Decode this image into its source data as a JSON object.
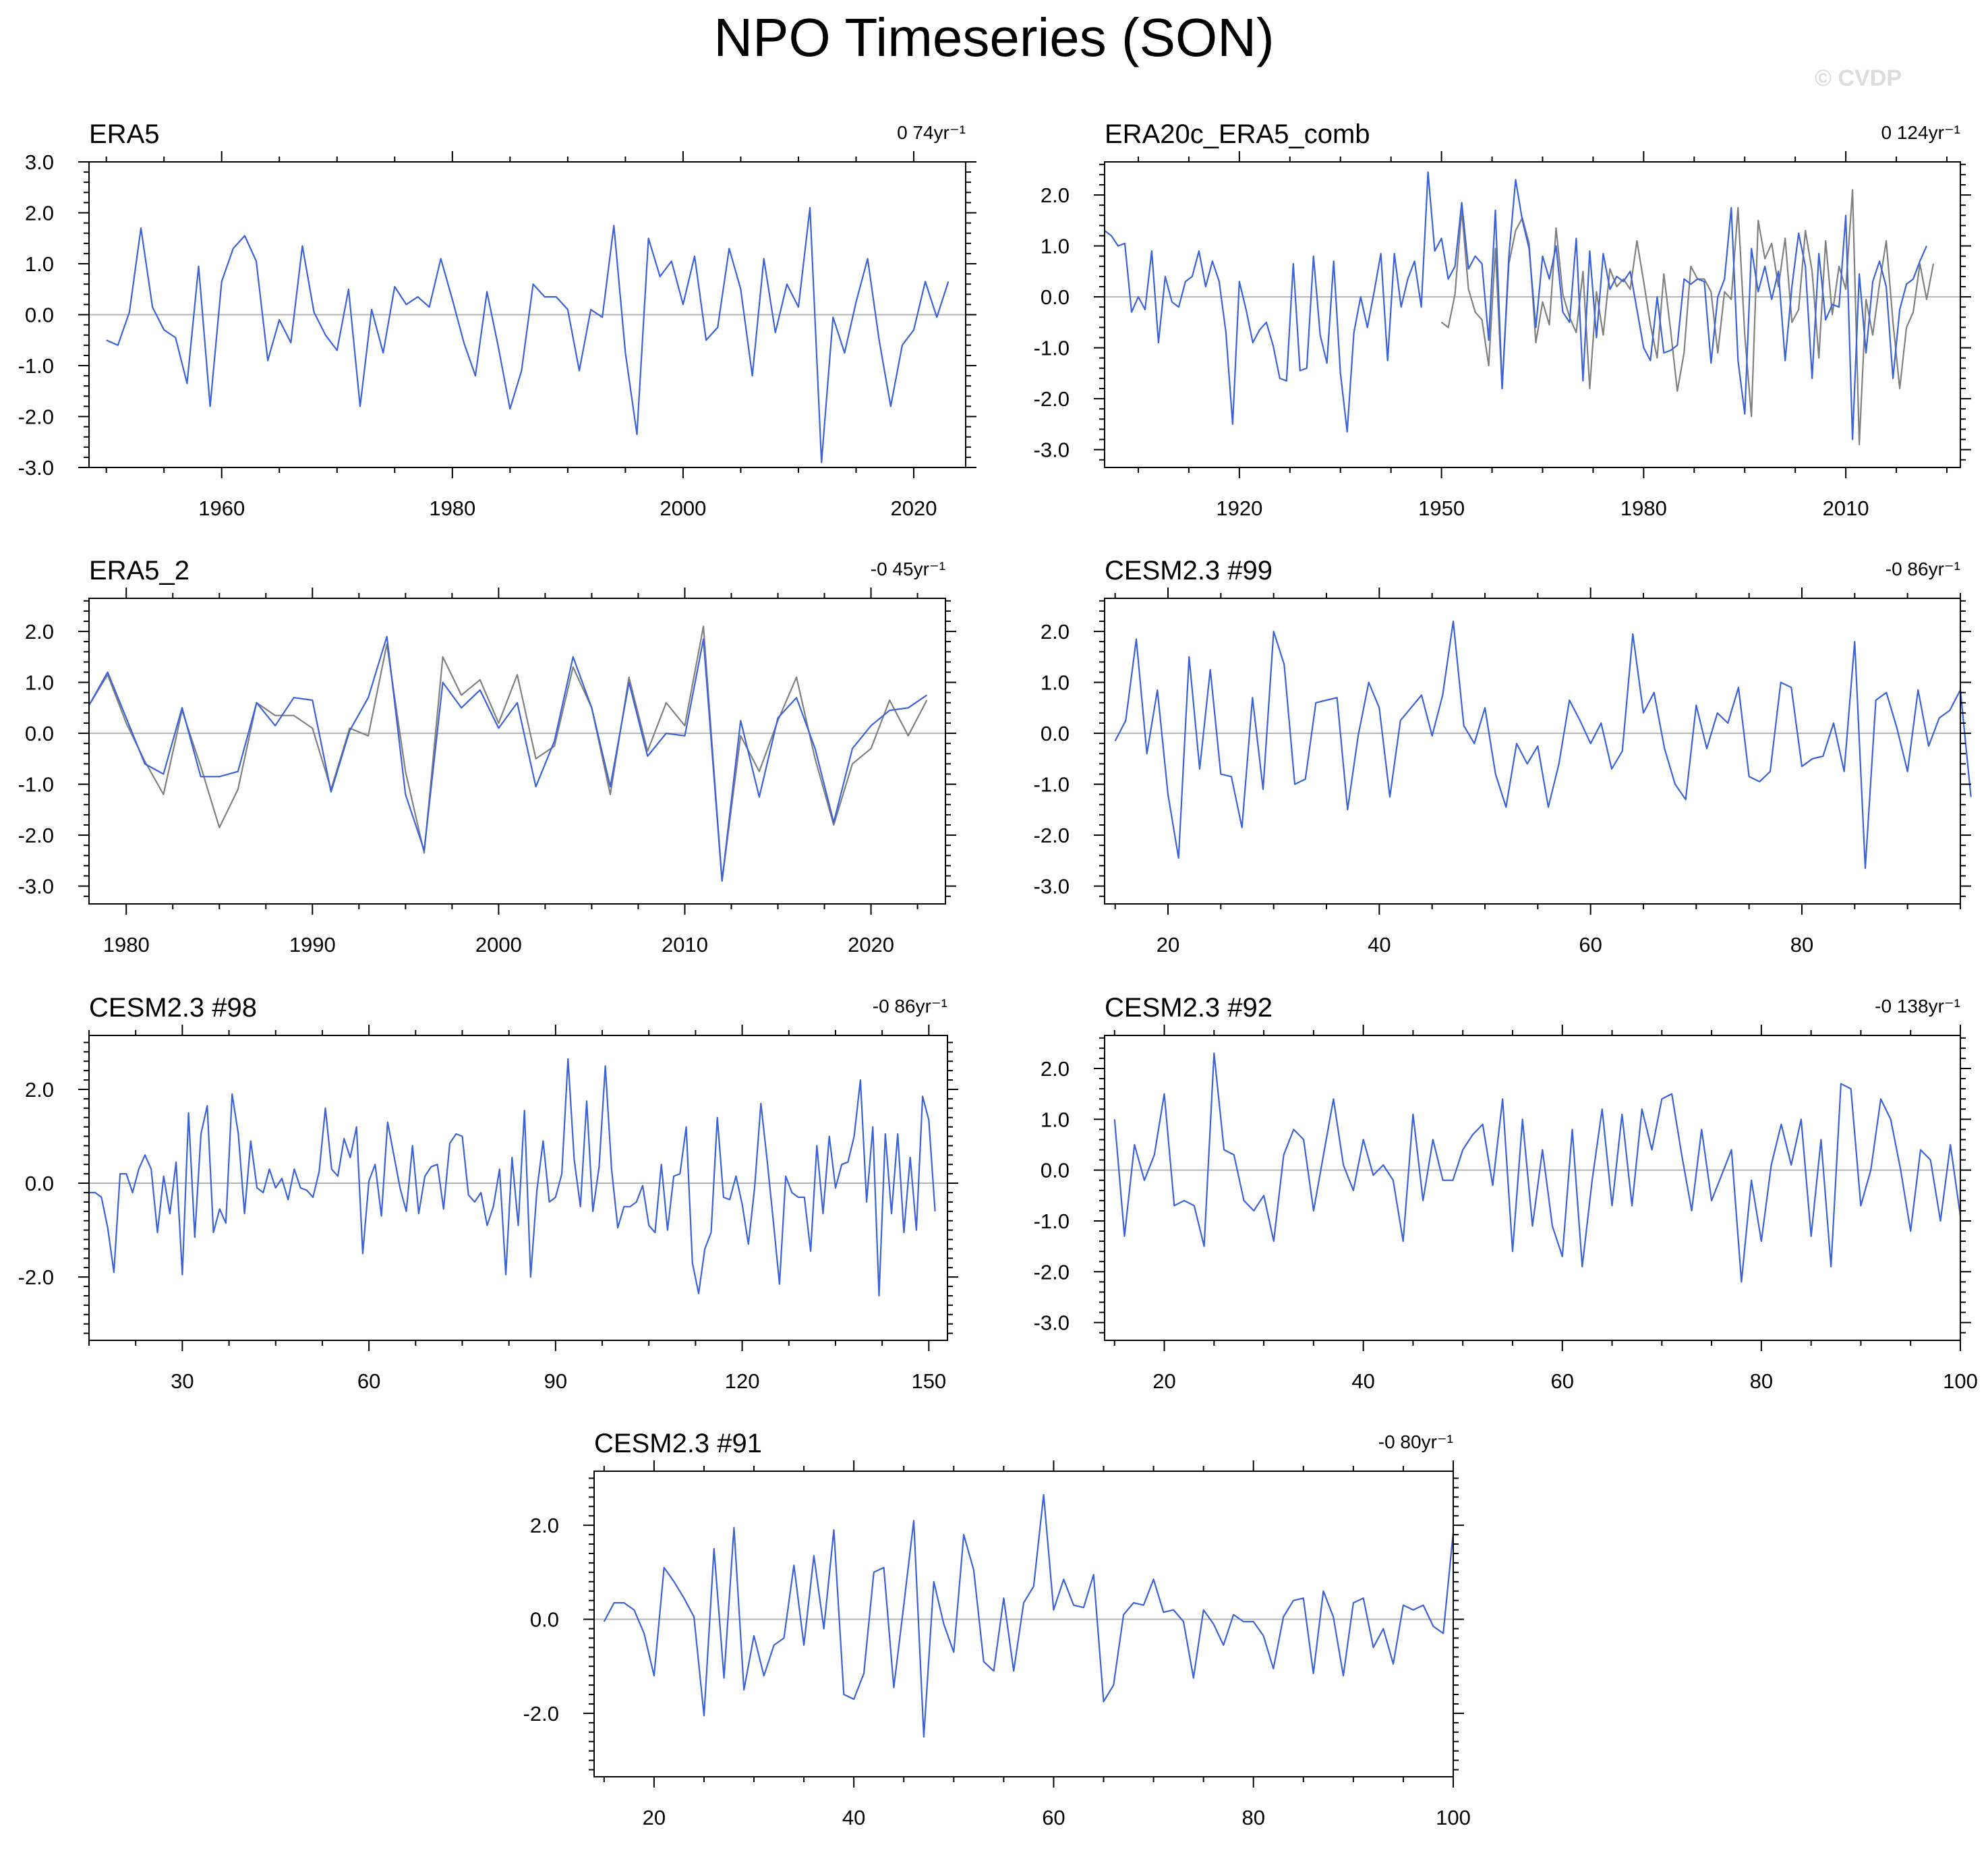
{
  "figure": {
    "title": "NPO Timeseries (SON)",
    "watermark": "© CVDP"
  },
  "colors": {
    "model_line": "#3b62d6",
    "obs_line": "#808080",
    "zero_line": "#b4b4b4",
    "frame": "#000000"
  },
  "chart_data": [
    {
      "type": "line",
      "title": "ERA5",
      "trend_label": "0 74yr⁻¹",
      "xlabel": "",
      "ylabel": "",
      "xlim": [
        1948.5,
        2024.5
      ],
      "ylim": [
        -3.0,
        3.0
      ],
      "xticks": [
        1960,
        1980,
        2000,
        2020
      ],
      "yticks": [
        -3.0,
        -2.0,
        -1.0,
        0.0,
        1.0,
        2.0,
        3.0
      ],
      "series": [
        {
          "name": "ERA5",
          "color": "#3b62d6",
          "x_start": 1950,
          "x_step": 1,
          "values": [
            -0.5,
            -0.6,
            0.05,
            1.7,
            0.15,
            -0.3,
            -0.45,
            -1.35,
            0.95,
            -1.8,
            0.65,
            1.3,
            1.55,
            1.05,
            -0.9,
            -0.1,
            -0.55,
            1.35,
            0.05,
            -0.4,
            -0.7,
            0.5,
            -1.8,
            0.1,
            -0.75,
            0.55,
            0.2,
            0.35,
            0.15,
            1.1,
            0.3,
            -0.55,
            -1.2,
            0.45,
            -0.65,
            -1.85,
            -1.1,
            0.6,
            0.35,
            0.35,
            0.1,
            -1.1,
            0.1,
            -0.05,
            1.75,
            -0.75,
            -2.35,
            1.5,
            0.75,
            1.05,
            0.2,
            1.15,
            -0.5,
            -0.25,
            1.3,
            0.5,
            -1.2,
            1.1,
            -0.35,
            0.6,
            0.15,
            2.1,
            -2.9,
            -0.05,
            -0.75,
            0.25,
            1.1,
            -0.5,
            -1.8,
            -0.6,
            -0.3,
            0.65,
            -0.05,
            0.65
          ]
        }
      ]
    },
    {
      "type": "line",
      "title": "ERA20c_ERA5_comb",
      "trend_label": "0 124yr⁻¹",
      "xlabel": "",
      "ylabel": "",
      "xlim": [
        1900,
        2027
      ],
      "ylim": [
        -3.35,
        2.65
      ],
      "xticks": [
        1920,
        1950,
        1980,
        2010
      ],
      "yticks": [
        -3.0,
        -2.0,
        -1.0,
        0.0,
        1.0,
        2.0
      ],
      "series": [
        {
          "name": "ERA20c_ERA5_comb",
          "color": "#3b62d6",
          "x_start": 1900,
          "x_step": 1,
          "values": [
            1.3,
            1.2,
            1.0,
            1.05,
            -0.3,
            0.0,
            -0.25,
            0.9,
            -0.9,
            0.4,
            -0.1,
            -0.2,
            0.3,
            0.4,
            0.9,
            0.2,
            0.7,
            0.3,
            -0.7,
            -2.5,
            0.3,
            -0.25,
            -0.9,
            -0.65,
            -0.5,
            -0.95,
            -1.6,
            -1.65,
            0.65,
            -1.45,
            -1.4,
            0.8,
            -0.75,
            -1.3,
            0.7,
            -1.5,
            -2.65,
            -0.7,
            0.0,
            -0.6,
            0.1,
            0.85,
            -1.25,
            0.85,
            -0.2,
            0.35,
            0.7,
            -0.2,
            2.45,
            0.9,
            1.15,
            0.35,
            0.6,
            1.85,
            0.55,
            0.8,
            0.65,
            -0.85,
            1.7,
            -1.8,
            0.8,
            2.3,
            1.5,
            0.95,
            -0.6,
            0.8,
            0.35,
            1.0,
            -0.3,
            -0.5,
            1.15,
            -1.65,
            0.9,
            -0.8,
            0.85,
            0.15,
            0.4,
            0.3,
            0.5,
            -0.25,
            -1.0,
            -1.25,
            0.0,
            -1.1,
            -1.05,
            -0.95,
            0.35,
            0.25,
            0.35,
            0.3,
            -1.3,
            0.0,
            0.35,
            1.75,
            -1.25,
            -2.3,
            0.95,
            0.1,
            0.6,
            -0.05,
            0.5,
            -1.25,
            0.2,
            1.25,
            0.6,
            -1.6,
            0.85,
            -0.45,
            -0.15,
            -0.2,
            1.6,
            -2.8,
            0.45,
            -1.1,
            0.3,
            0.7,
            0.2,
            -1.6,
            -0.25,
            0.25,
            0.35,
            0.7,
            1.0
          ]
        },
        {
          "name": "ERA20c",
          "color": "#808080",
          "x_start": 1950,
          "x_step": 1,
          "values": [
            -0.5,
            -0.6,
            0.05,
            1.7,
            0.15,
            -0.3,
            -0.45,
            -1.35,
            0.95,
            -1.8,
            0.65,
            1.3,
            1.55,
            1.05,
            -0.9,
            -0.1,
            -0.55,
            1.35,
            0.05,
            -0.4,
            -0.7,
            0.5,
            -1.8,
            0.1,
            -0.75,
            0.55,
            0.2,
            0.35,
            0.15,
            1.1,
            0.3,
            -0.55,
            -1.2,
            0.45,
            -0.65,
            -1.85,
            -1.1,
            0.6,
            0.35,
            0.35,
            0.1,
            -1.1,
            0.1,
            -0.05,
            1.75,
            -0.75,
            -2.35,
            1.5,
            0.75,
            1.05,
            0.2,
            1.15,
            -0.5,
            -0.25,
            1.3,
            0.5,
            -1.2,
            1.1,
            -0.35,
            0.6,
            0.15,
            2.1,
            -2.9,
            -0.05,
            -0.75,
            0.25,
            1.1,
            -0.5,
            -1.8,
            -0.6,
            -0.3,
            0.65,
            -0.05,
            0.65
          ]
        }
      ]
    },
    {
      "type": "line",
      "title": "ERA5_2",
      "trend_label": "-0 45yr⁻¹",
      "xlabel": "",
      "ylabel": "",
      "xlim": [
        1978,
        2024
      ],
      "ylim": [
        -3.35,
        2.65
      ],
      "xticks": [
        1980,
        1990,
        2000,
        2010,
        2020
      ],
      "yticks": [
        -3.0,
        -2.0,
        -1.0,
        0.0,
        1.0,
        2.0
      ],
      "series": [
        {
          "name": "ERA5_2",
          "color": "#3b62d6",
          "x_start": 1978,
          "x_step": 1,
          "values": [
            0.55,
            1.2,
            0.3,
            -0.6,
            -0.8,
            0.5,
            -0.85,
            -0.85,
            -0.75,
            0.6,
            0.15,
            0.7,
            0.65,
            -1.15,
            0.05,
            0.7,
            1.9,
            -1.2,
            -2.3,
            1.0,
            0.5,
            0.85,
            0.1,
            0.6,
            -1.05,
            -0.15,
            1.5,
            0.5,
            -1.05,
            1.0,
            -0.45,
            0.0,
            -0.05,
            1.85,
            -2.9,
            0.25,
            -1.25,
            0.3,
            0.7,
            -0.3,
            -1.75,
            -0.3,
            0.15,
            0.45,
            0.5,
            0.75
          ]
        },
        {
          "name": "ERA5",
          "color": "#808080",
          "x_start": 1978,
          "x_step": 1,
          "values": [
            0.55,
            1.15,
            0.2,
            -0.55,
            -1.2,
            0.45,
            -0.65,
            -1.85,
            -1.1,
            0.6,
            0.35,
            0.35,
            0.1,
            -1.1,
            0.1,
            -0.05,
            1.75,
            -0.75,
            -2.35,
            1.5,
            0.75,
            1.05,
            0.2,
            1.15,
            -0.5,
            -0.25,
            1.3,
            0.5,
            -1.2,
            1.1,
            -0.35,
            0.6,
            0.15,
            2.1,
            -2.9,
            -0.05,
            -0.75,
            0.25,
            1.1,
            -0.5,
            -1.8,
            -0.6,
            -0.3,
            0.65,
            -0.05,
            0.65
          ]
        }
      ]
    },
    {
      "type": "line",
      "title": "CESM2.3 #99",
      "trend_label": "-0 86yr⁻¹",
      "xlabel": "",
      "ylabel": "",
      "xlim": [
        14,
        95
      ],
      "ylim": [
        -3.35,
        2.65
      ],
      "xticks": [
        20,
        40,
        60,
        80
      ],
      "yticks": [
        -3.0,
        -2.0,
        -1.0,
        0.0,
        1.0,
        2.0
      ],
      "series": [
        {
          "name": "CESM2.3 #99",
          "color": "#3b62d6",
          "x_start": 15,
          "x_step": 1,
          "values": [
            -0.15,
            0.25,
            1.85,
            -0.4,
            0.85,
            -1.2,
            -2.45,
            1.5,
            -0.7,
            1.25,
            -0.8,
            -0.85,
            -1.85,
            0.7,
            -1.1,
            2.0,
            1.35,
            -1.0,
            -0.9,
            0.6,
            0.65,
            0.7,
            -1.5,
            -0.05,
            1.0,
            0.5,
            -1.25,
            0.25,
            0.5,
            0.75,
            -0.05,
            0.75,
            2.2,
            0.15,
            -0.2,
            0.5,
            -0.8,
            -1.45,
            -0.2,
            -0.6,
            -0.25,
            -1.45,
            -0.6,
            0.65,
            0.25,
            -0.2,
            0.2,
            -0.7,
            -0.35,
            1.95,
            0.4,
            0.8,
            -0.3,
            -1.0,
            -1.3,
            0.55,
            -0.3,
            0.4,
            0.2,
            0.9,
            -0.85,
            -0.95,
            -0.75,
            1.0,
            0.9,
            -0.65,
            -0.5,
            -0.45,
            0.2,
            -0.75,
            1.8,
            -2.65,
            0.65,
            0.8,
            0.1,
            -0.75,
            0.85,
            -0.25,
            0.3,
            0.45,
            0.85,
            -1.25
          ]
        }
      ]
    },
    {
      "type": "line",
      "title": "CESM2.3 #98",
      "trend_label": "-0 86yr⁻¹",
      "xlabel": "",
      "ylabel": "",
      "xlim": [
        15,
        153
      ],
      "ylim": [
        -3.35,
        3.15
      ],
      "xticks": [
        30,
        60,
        90,
        120,
        150
      ],
      "yticks": [
        -2.0,
        0.0,
        2.0
      ],
      "series": [
        {
          "name": "CESM2.3 #98",
          "color": "#3b62d6",
          "x_start": 15,
          "x_step": 1,
          "values": [
            -0.2,
            -0.2,
            -0.3,
            -0.95,
            -1.9,
            0.2,
            0.2,
            -0.2,
            0.3,
            0.6,
            0.3,
            -1.05,
            0.15,
            -0.65,
            0.45,
            -1.95,
            1.5,
            -1.15,
            1.05,
            1.65,
            -1.05,
            -0.55,
            -0.85,
            1.9,
            1.05,
            -0.65,
            0.9,
            -0.1,
            -0.2,
            0.3,
            -0.1,
            0.1,
            -0.35,
            0.3,
            -0.1,
            -0.15,
            -0.3,
            0.25,
            1.6,
            0.3,
            0.15,
            0.95,
            0.55,
            1.2,
            -1.5,
            0.05,
            0.4,
            -0.7,
            1.3,
            0.6,
            -0.1,
            -0.6,
            0.8,
            -0.65,
            0.15,
            0.35,
            0.4,
            -0.55,
            0.85,
            1.05,
            1.0,
            -0.25,
            -0.4,
            -0.2,
            -0.9,
            -0.5,
            0.3,
            -1.95,
            0.55,
            -0.9,
            1.55,
            -2.0,
            -0.15,
            0.9,
            -0.4,
            -0.3,
            0.2,
            2.65,
            0.5,
            -0.5,
            1.75,
            -0.6,
            0.35,
            2.5,
            0.3,
            -0.95,
            -0.5,
            -0.5,
            -0.4,
            -0.05,
            -0.9,
            -1.05,
            0.4,
            -1.0,
            0.15,
            0.2,
            1.2,
            -1.7,
            -2.35,
            -1.4,
            -1.05,
            1.4,
            -0.3,
            -0.35,
            0.15,
            -0.45,
            -1.3,
            -0.1,
            1.7,
            0.5,
            -0.8,
            -2.15,
            0.15,
            -0.2,
            -0.3,
            -0.3,
            -1.45,
            0.8,
            -0.65,
            1.0,
            -0.1,
            0.4,
            0.45,
            1.0,
            2.2,
            -0.4,
            1.2,
            -2.4,
            1.05,
            -0.65,
            1.05,
            -1.05,
            0.55,
            -1.0,
            1.85,
            1.35,
            -0.6
          ]
        }
      ]
    },
    {
      "type": "line",
      "title": "CESM2.3 #92",
      "trend_label": "-0 138yr⁻¹",
      "xlabel": "",
      "ylabel": "",
      "xlim": [
        14,
        100
      ],
      "ylim": [
        -3.35,
        2.65
      ],
      "xticks": [
        20,
        40,
        60,
        80,
        100
      ],
      "yticks": [
        -3.0,
        -2.0,
        -1.0,
        0.0,
        1.0,
        2.0
      ],
      "series": [
        {
          "name": "CESM2.3 #92",
          "color": "#3b62d6",
          "x_start": 15,
          "x_step": 1,
          "values": [
            1.0,
            -1.3,
            0.5,
            -0.2,
            0.3,
            1.5,
            -0.7,
            -0.6,
            -0.7,
            -1.5,
            2.3,
            0.4,
            0.3,
            -0.6,
            -0.8,
            -0.5,
            -1.4,
            0.3,
            0.8,
            0.6,
            -0.8,
            0.3,
            1.4,
            0.1,
            -0.4,
            0.6,
            -0.1,
            0.1,
            -0.2,
            -1.4,
            1.1,
            -0.6,
            0.6,
            -0.2,
            -0.2,
            0.4,
            0.7,
            0.9,
            -0.3,
            1.4,
            -1.6,
            1.0,
            -1.1,
            0.4,
            -1.1,
            -1.7,
            0.8,
            -1.9,
            -0.2,
            1.2,
            -0.7,
            1.1,
            -0.7,
            1.2,
            0.4,
            1.4,
            1.5,
            0.3,
            -0.8,
            0.8,
            -0.6,
            -0.1,
            0.4,
            -2.2,
            -0.2,
            -1.4,
            0.1,
            0.9,
            0.1,
            1.0,
            -1.3,
            0.6,
            -1.9,
            1.7,
            1.6,
            -0.7,
            0.0,
            1.4,
            1.0,
            0.0,
            -1.2,
            0.4,
            0.2,
            -1.0,
            0.5,
            -0.9
          ]
        }
      ]
    },
    {
      "type": "line",
      "title": "CESM2.3 #91",
      "trend_label": "-0 80yr⁻¹",
      "xlabel": "",
      "ylabel": "",
      "xlim": [
        14,
        100
      ],
      "ylim": [
        -3.35,
        3.15
      ],
      "xticks": [
        20,
        40,
        60,
        80,
        100
      ],
      "yticks": [
        -2.0,
        0.0,
        2.0
      ],
      "series": [
        {
          "name": "CESM2.3 #91",
          "color": "#3b62d6",
          "x_start": 15,
          "x_step": 1,
          "values": [
            -0.05,
            0.35,
            0.35,
            0.2,
            -0.3,
            -1.2,
            1.1,
            0.8,
            0.45,
            0.05,
            -2.05,
            1.5,
            -1.25,
            1.95,
            -1.5,
            -0.35,
            -1.2,
            -0.55,
            -0.4,
            1.15,
            -0.55,
            1.35,
            -0.2,
            1.9,
            -1.6,
            -1.7,
            -1.15,
            1.0,
            1.1,
            -1.45,
            0.3,
            2.1,
            -2.5,
            0.8,
            -0.1,
            -0.7,
            1.8,
            1.05,
            -0.9,
            -1.1,
            0.45,
            -1.1,
            0.35,
            0.7,
            2.65,
            0.2,
            0.85,
            0.3,
            0.25,
            0.95,
            -1.75,
            -1.4,
            0.1,
            0.35,
            0.3,
            0.85,
            0.15,
            0.2,
            -0.05,
            -1.25,
            0.2,
            -0.1,
            -0.55,
            0.1,
            -0.05,
            -0.05,
            -0.35,
            -1.05,
            0.05,
            0.4,
            0.45,
            -1.15,
            0.6,
            0.05,
            -1.2,
            0.35,
            0.45,
            -0.6,
            -0.2,
            -0.95,
            0.3,
            0.2,
            0.3,
            -0.15,
            -0.3,
            1.85
          ]
        }
      ]
    }
  ]
}
